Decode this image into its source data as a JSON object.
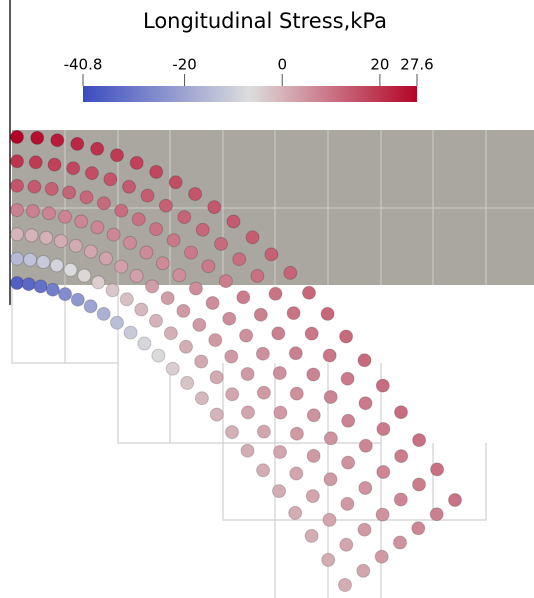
{
  "colorbar": {
    "title": "Longitudinal Stress,kPa",
    "range": [
      -40.8,
      27.6
    ],
    "ticks": [
      -40.8,
      -20,
      0,
      20,
      27.6
    ],
    "colormap": [
      "#3b4cc0",
      "#dddddd",
      "#b40426"
    ]
  },
  "particles": {
    "layers": [
      {
        "values": [
          27.6,
          26,
          24,
          22,
          20.5,
          19,
          18,
          17,
          16,
          15,
          14.5,
          14,
          13.5,
          13,
          12.5,
          12,
          12,
          11.5,
          11.5,
          11,
          11,
          10.5,
          10.5,
          10
        ]
      },
      {
        "values": [
          20,
          19,
          18,
          17,
          16,
          15,
          14,
          13.5,
          13,
          12.5,
          12,
          11.5,
          11,
          10.5,
          10,
          10,
          9.5,
          9.5,
          9,
          9,
          9,
          8.5,
          8.5,
          8
        ]
      },
      {
        "values": [
          15,
          14,
          13,
          12.5,
          12,
          11.5,
          11,
          10.5,
          10,
          9.5,
          9,
          9,
          8.5,
          8.5,
          8,
          8,
          8,
          7.5,
          7.5,
          7.5,
          7,
          7,
          7,
          7
        ]
      },
      {
        "values": [
          8,
          8,
          7.5,
          7.5,
          7,
          7,
          7,
          6.5,
          6.5,
          6.5,
          6,
          6,
          6,
          6,
          5.5,
          5.5,
          5.5,
          5.5,
          5,
          5,
          5,
          5,
          5,
          5
        ]
      },
      {
        "values": [
          0,
          0,
          0.5,
          1,
          1.5,
          2,
          2.5,
          3,
          3,
          3.5,
          3.5,
          4,
          4,
          4,
          4,
          4,
          4,
          4,
          4,
          4,
          4,
          4,
          4,
          4
        ]
      },
      {
        "values": [
          -15,
          -13,
          -11,
          -9,
          -7,
          -5.5,
          -4,
          -3,
          -2,
          -1,
          0,
          0.5,
          1,
          1.5,
          1.5,
          2,
          2,
          2,
          2,
          2,
          2,
          2,
          2,
          2
        ]
      },
      {
        "values": [
          -36,
          -34,
          -32,
          -29,
          -26,
          -23,
          -20,
          -17,
          -14,
          -11,
          -8,
          -6,
          -4,
          -2.5,
          -1,
          0,
          0.5,
          1,
          1,
          1,
          1,
          1,
          1,
          1
        ]
      }
    ]
  }
}
